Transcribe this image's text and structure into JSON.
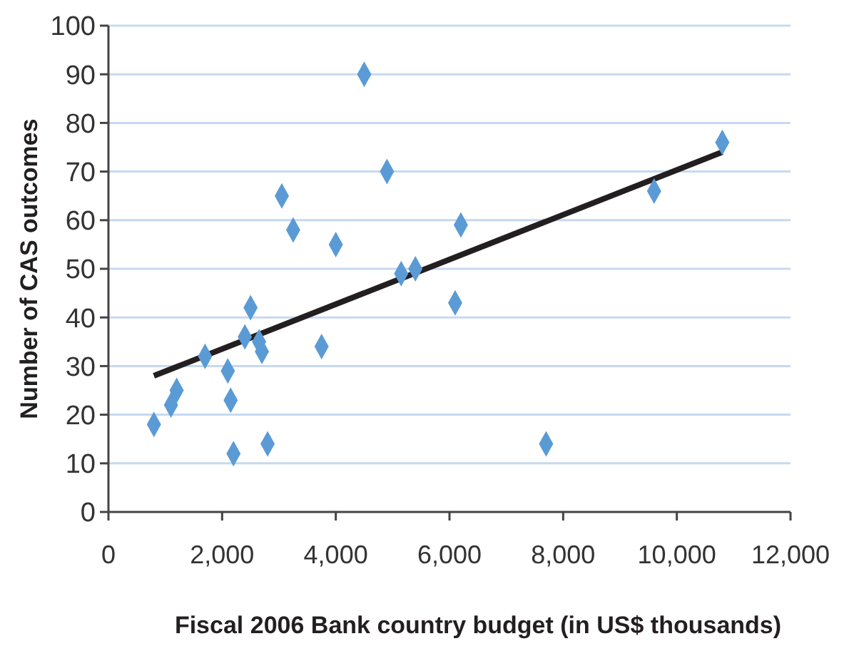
{
  "chart_data": {
    "type": "scatter",
    "xlabel": "Fiscal 2006 Bank country budget (in US$ thousands)",
    "ylabel": "Number of CAS outcomes",
    "xlim": [
      0,
      12000
    ],
    "xticks": [
      {
        "value": 0,
        "label": "0"
      },
      {
        "value": 2000,
        "label": "2,000"
      },
      {
        "value": 4000,
        "label": "4,000"
      },
      {
        "value": 6000,
        "label": "6,000"
      },
      {
        "value": 8000,
        "label": "8,000"
      },
      {
        "value": 10000,
        "label": "10,000"
      },
      {
        "value": 12000,
        "label": "12,000"
      }
    ],
    "ylim": [
      0,
      100
    ],
    "yticks": [
      0,
      10,
      20,
      30,
      40,
      50,
      60,
      70,
      80,
      90,
      100
    ],
    "grid": "y",
    "series": [
      {
        "marker": "diamond",
        "color": "#5b9bd5",
        "x": [
          800,
          1100,
          1200,
          1700,
          2100,
          2150,
          2200,
          2400,
          2500,
          2650,
          2700,
          2800,
          3050,
          3250,
          3750,
          4000,
          4500,
          4900,
          5150,
          5400,
          6100,
          6200,
          7700,
          9600,
          10800
        ],
        "values": [
          18,
          22,
          25,
          32,
          29,
          23,
          12,
          36,
          42,
          35,
          33,
          14,
          65,
          58,
          34,
          55,
          90,
          70,
          49,
          50,
          43,
          59,
          14,
          66,
          76
        ]
      },
      {
        "type": "line",
        "color": "#231f20",
        "x": [
          800,
          10800
        ],
        "values": [
          28,
          74
        ]
      }
    ]
  }
}
